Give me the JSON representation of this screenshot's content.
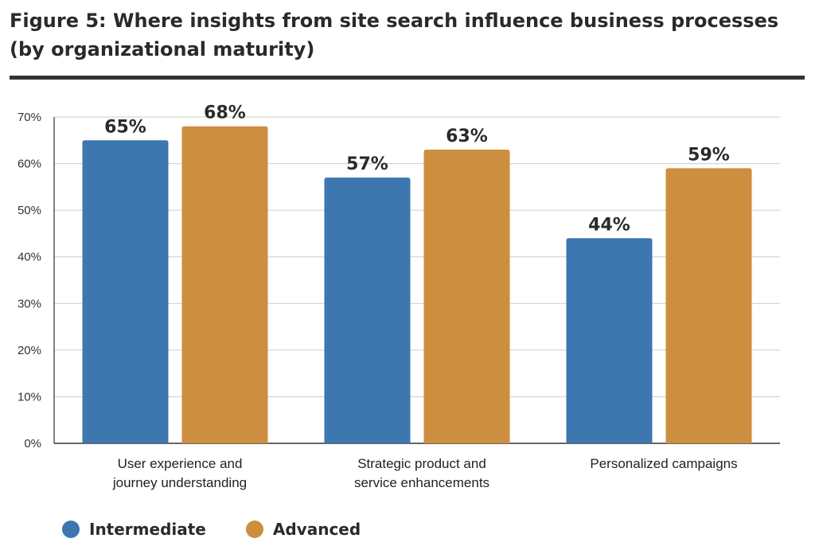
{
  "title": "Figure 5:  Where insights from site search influence business processes (by organizational maturity)",
  "colors": {
    "series_1": "#3e76b0",
    "series_2": "#cd8e40",
    "grid": "#cccccc",
    "axis": "#333333"
  },
  "chart_data": {
    "type": "bar",
    "title": "Figure 5:  Where insights from site search influence business processes (by organizational maturity)",
    "categories": [
      [
        "User experience and",
        "journey understanding"
      ],
      [
        "Strategic product and",
        "service enhancements"
      ],
      [
        "Personalized campaigns"
      ]
    ],
    "series": [
      {
        "name": "Intermediate",
        "values": [
          65,
          57,
          44
        ],
        "labels": [
          "65%",
          "57%",
          "44%"
        ]
      },
      {
        "name": "Advanced",
        "values": [
          68,
          63,
          59
        ],
        "labels": [
          "68%",
          "63%",
          "59%"
        ]
      }
    ],
    "ylim": [
      0,
      70
    ],
    "yticks": [
      0,
      10,
      20,
      30,
      40,
      50,
      60,
      70
    ],
    "ytick_labels": [
      "0%",
      "10%",
      "20%",
      "30%",
      "40%",
      "50%",
      "60%",
      "70%"
    ],
    "grid": true,
    "legend_position": "bottom-left"
  }
}
